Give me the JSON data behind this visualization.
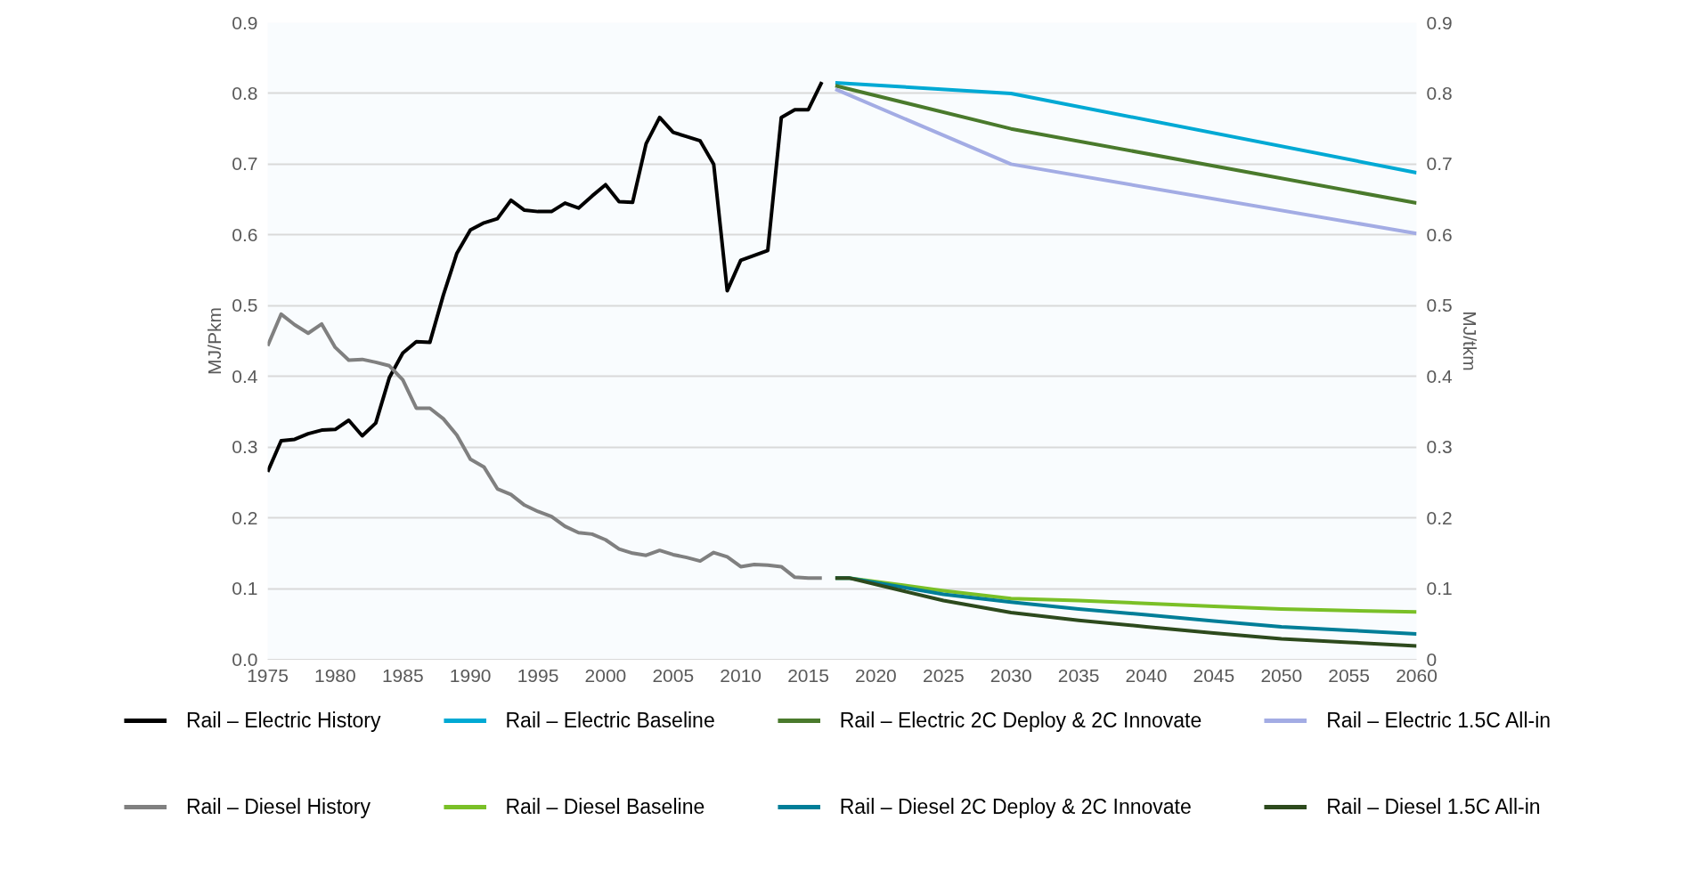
{
  "chart_data": {
    "type": "line",
    "ylabel": "MJ/Pkm",
    "y2label": "MJ/tkm",
    "xlim": [
      1975,
      2060
    ],
    "xticks": [
      1975,
      1980,
      1985,
      1990,
      1995,
      2000,
      2005,
      2010,
      2015,
      2020,
      2025,
      2030,
      2035,
      2040,
      2045,
      2050,
      2055,
      2060
    ],
    "ylim": [
      0,
      0.9
    ],
    "yticks": [
      {
        "value": 0,
        "label": "0.0"
      },
      0.1,
      0.2,
      0.3,
      0.4,
      0.5,
      0.6,
      0.7,
      0.8,
      0.9
    ],
    "y2lim": [
      0,
      0.9
    ],
    "y2ticks": [
      0,
      0.1,
      0.2,
      0.3,
      0.4,
      0.5,
      0.6,
      0.7,
      0.8,
      0.9
    ],
    "grid": "y",
    "legend": "bottom",
    "marker": "none",
    "line_style": "solid",
    "series": [
      {
        "name": "Rail – Electric History",
        "color": "#000000",
        "x": [
          1975,
          1976,
          1977,
          1978,
          1979,
          1980,
          1981,
          1982,
          1983,
          1984,
          1985,
          1986,
          1987,
          1988,
          1989,
          1990,
          1991,
          1992,
          1993,
          1994,
          1995,
          1996,
          1997,
          1998,
          1999,
          2000,
          2001,
          2002,
          2003,
          2004,
          2005,
          2006,
          2007,
          2008,
          2009,
          2010,
          2011,
          2012,
          2013,
          2014,
          2015,
          2016
        ],
        "values": [
          0.265,
          0.309,
          0.311,
          0.319,
          0.324,
          0.325,
          0.338,
          0.316,
          0.334,
          0.398,
          0.433,
          0.449,
          0.448,
          0.515,
          0.574,
          0.607,
          0.617,
          0.623,
          0.649,
          0.635,
          0.633,
          0.633,
          0.645,
          0.638,
          0.655,
          0.671,
          0.647,
          0.646,
          0.729,
          0.766,
          0.745,
          0.739,
          0.733,
          0.7,
          0.521,
          0.564,
          0.571,
          0.578,
          0.766,
          0.777,
          0.777,
          0.816
        ]
      },
      {
        "name": "Rail – Electric Baseline",
        "color": "#00a9d4",
        "x": [
          2017,
          2030,
          2060
        ],
        "values": [
          0.815,
          0.8,
          0.688
        ]
      },
      {
        "name": "Rail – Electric 2C Deploy & 2C Innovate",
        "color": "#4a7a2c",
        "x": [
          2017,
          2030,
          2060
        ],
        "values": [
          0.811,
          0.75,
          0.645
        ]
      },
      {
        "name": "Rail – Electric 1.5C All-in",
        "color": "#a3ace4",
        "x": [
          2017,
          2030,
          2060
        ],
        "values": [
          0.806,
          0.7,
          0.602
        ]
      },
      {
        "name": "Rail – Diesel History",
        "color": "#808080",
        "x": [
          1975,
          1976,
          1977,
          1978,
          1979,
          1980,
          1981,
          1982,
          1983,
          1984,
          1985,
          1986,
          1987,
          1988,
          1989,
          1990,
          1991,
          1992,
          1993,
          1994,
          1995,
          1996,
          1997,
          1998,
          1999,
          2000,
          2001,
          2002,
          2003,
          2004,
          2005,
          2006,
          2007,
          2008,
          2009,
          2010,
          2011,
          2012,
          2013,
          2014,
          2015,
          2016
        ],
        "values": [
          0.443,
          0.488,
          0.473,
          0.461,
          0.474,
          0.441,
          0.423,
          0.424,
          0.42,
          0.415,
          0.395,
          0.355,
          0.355,
          0.34,
          0.317,
          0.283,
          0.272,
          0.241,
          0.233,
          0.218,
          0.209,
          0.202,
          0.188,
          0.179,
          0.177,
          0.169,
          0.156,
          0.15,
          0.147,
          0.154,
          0.148,
          0.144,
          0.139,
          0.151,
          0.145,
          0.131,
          0.134,
          0.133,
          0.131,
          0.116,
          0.115,
          0.115
        ]
      },
      {
        "name": "Rail – Diesel Baseline",
        "color": "#7ac027",
        "x": [
          2017,
          2018,
          2025,
          2030,
          2035,
          2040,
          2045,
          2050,
          2055,
          2060
        ],
        "values": [
          0.115,
          0.115,
          0.097,
          0.086,
          0.083,
          0.079,
          0.075,
          0.071,
          0.069,
          0.067
        ]
      },
      {
        "name": "Rail – Diesel 2C Deploy & 2C Innovate",
        "color": "#007e98",
        "x": [
          2017,
          2018,
          2025,
          2030,
          2035,
          2040,
          2045,
          2050,
          2055,
          2060
        ],
        "values": [
          0.115,
          0.115,
          0.092,
          0.081,
          0.071,
          0.063,
          0.054,
          0.046,
          0.041,
          0.036
        ]
      },
      {
        "name": "Rail – Diesel 1.5C All-in",
        "color": "#2d4a1d",
        "x": [
          2017,
          2018,
          2025,
          2030,
          2035,
          2040,
          2045,
          2050,
          2055,
          2060
        ],
        "values": [
          0.115,
          0.115,
          0.083,
          0.066,
          0.055,
          0.046,
          0.037,
          0.029,
          0.024,
          0.019
        ]
      }
    ]
  }
}
